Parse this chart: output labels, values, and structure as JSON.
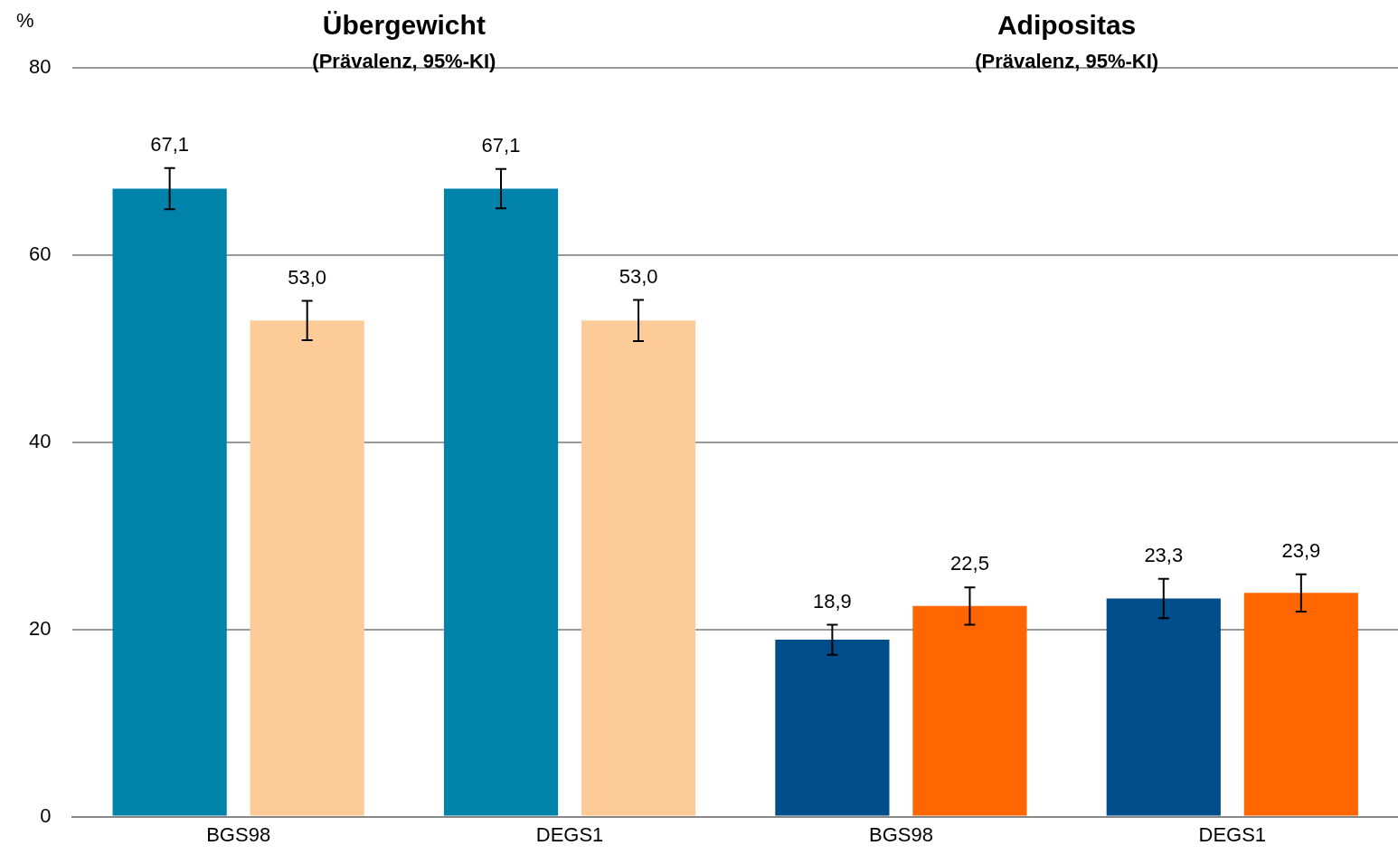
{
  "chart_data": {
    "type": "bar",
    "ylabel": "%",
    "categories": [
      "BGS98",
      "DEGS1",
      "BGS98",
      "DEGS1"
    ],
    "series": [
      {
        "colors": [
          "#0083ab",
          "#0083ab",
          "#004d8c",
          "#004d8c"
        ],
        "values": [
          67.1,
          67.1,
          18.9,
          23.3
        ],
        "errors": [
          2.2,
          2.1,
          1.6,
          2.1
        ],
        "value_labels": [
          "67,1",
          "67,1",
          "18,9",
          "23,3"
        ]
      },
      {
        "colors": [
          "#fdcb98",
          "#fdcb98",
          "#ff6600",
          "#ff6600"
        ],
        "values": [
          53.0,
          53.0,
          22.5,
          23.9
        ],
        "errors": [
          2.1,
          2.2,
          2.0,
          2.0
        ],
        "value_labels": [
          "53,0",
          "53,0",
          "22,5",
          "23,9"
        ]
      }
    ],
    "annotations": [
      "Übergewicht",
      "(Prävalenz, 95%-KI)",
      "Adipositas",
      "(Prävalenz, 95%-KI)"
    ],
    "ylim": [
      0,
      80
    ],
    "yticks": [
      0,
      20,
      40,
      60,
      80
    ],
    "grid": "y",
    "legend": false
  }
}
